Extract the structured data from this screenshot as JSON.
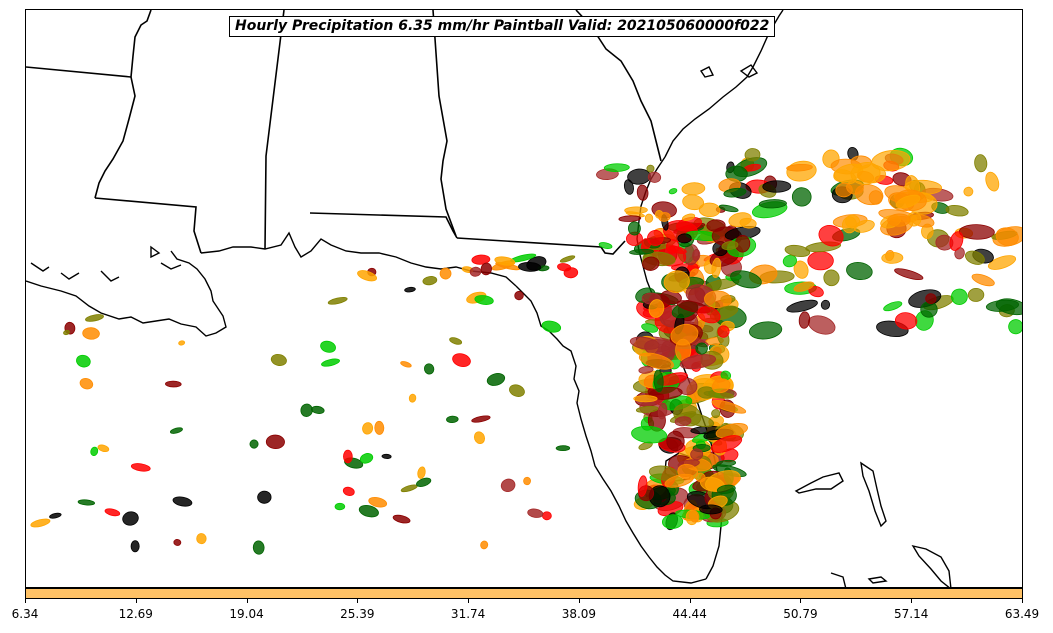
{
  "title": "Hourly Precipitation 6.35 mm/hr Paintball Valid: 202105060000f022",
  "colorbar": {
    "color": "#ffc266",
    "ticks": [
      "6.34",
      "12.69",
      "19.04",
      "25.39",
      "31.74",
      "38.09",
      "44.44",
      "50.79",
      "57.14",
      "63.49"
    ]
  },
  "colors": {
    "coastline": "#000000",
    "member_colors": [
      "#ff0000",
      "#ff8c00",
      "#ffa500",
      "#8b0000",
      "#006400",
      "#00cc00",
      "#808000",
      "#000000",
      "#a52a2a"
    ]
  }
}
